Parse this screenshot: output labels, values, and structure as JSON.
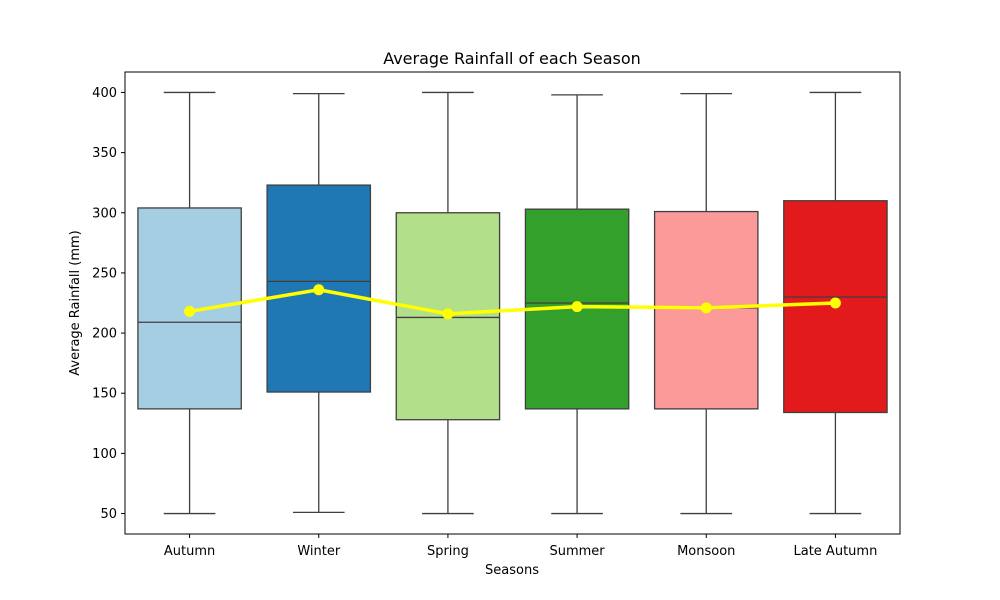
{
  "chart_data": {
    "type": "box",
    "title": "Average Rainfall of each Season",
    "xlabel": "Seasons",
    "ylabel": "Average Rainfall (mm)",
    "ylim": [
      33,
      417
    ],
    "yticks": [
      50,
      100,
      150,
      200,
      250,
      300,
      350,
      400
    ],
    "categories": [
      "Autumn",
      "Winter",
      "Spring",
      "Summer",
      "Monsoon",
      "Late Autumn"
    ],
    "boxes": [
      {
        "category": "Autumn",
        "min": 50,
        "q1": 137,
        "median": 209,
        "q3": 304,
        "max": 400,
        "color": "#a6cee3"
      },
      {
        "category": "Winter",
        "min": 51,
        "q1": 151,
        "median": 243,
        "q3": 323,
        "max": 399,
        "color": "#1f78b4"
      },
      {
        "category": "Spring",
        "min": 50,
        "q1": 128,
        "median": 213,
        "q3": 300,
        "max": 400,
        "color": "#b2df8a"
      },
      {
        "category": "Summer",
        "min": 50,
        "q1": 137,
        "median": 225,
        "q3": 303,
        "max": 398,
        "color": "#33a02c"
      },
      {
        "category": "Monsoon",
        "min": 50,
        "q1": 137,
        "median": 221,
        "q3": 301,
        "max": 399,
        "color": "#fb9a99"
      },
      {
        "category": "Late Autumn",
        "min": 50,
        "q1": 134,
        "median": 230,
        "q3": 310,
        "max": 400,
        "color": "#e31a1c"
      }
    ],
    "mean_line": {
      "values": [
        218,
        236,
        216,
        222,
        221,
        225
      ],
      "color": "#ffff00"
    },
    "grid": false
  }
}
